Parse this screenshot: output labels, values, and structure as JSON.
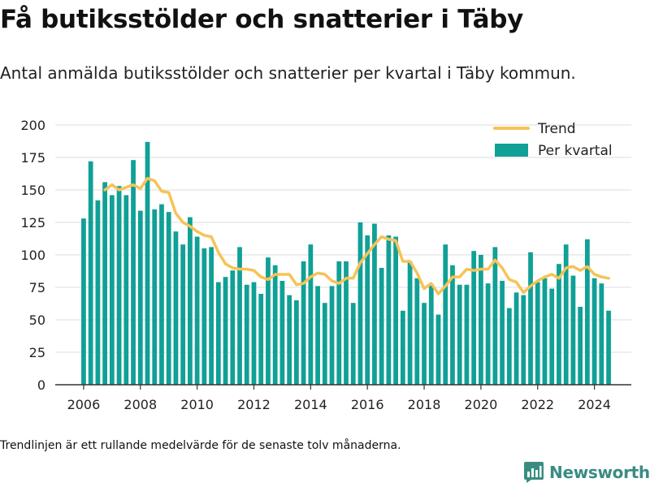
{
  "title": "Få butiksstölder och snatterier i Täby",
  "subtitle": "Antal anmälda butiksstölder och snatterier per kvartal i Täby kommun.",
  "footnote": "Trendlinjen är ett rullande medelvärde för de senaste tolv månaderna.",
  "brand": {
    "name": "Newsworthy",
    "icon": "newsworthy-logo-icon"
  },
  "colors": {
    "bar": "#10a096",
    "trend": "#f6c357",
    "grid": "#dddddd",
    "axis": "#333333"
  },
  "chart_data": {
    "type": "bar",
    "legend": {
      "position": "top-right",
      "trend_label": "Trend",
      "bars_label": "Per kvartal"
    },
    "ylim": [
      0,
      200
    ],
    "yticks": [
      0,
      25,
      50,
      75,
      100,
      125,
      150,
      175,
      200
    ],
    "xlim": [
      2005.0,
      2025.3
    ],
    "xticks": [
      2006,
      2008,
      2010,
      2012,
      2014,
      2016,
      2018,
      2020,
      2022,
      2024
    ],
    "grid": true,
    "x_start": 2006.0,
    "bars": [
      128,
      172,
      142,
      156,
      146,
      153,
      146,
      173,
      134,
      187,
      135,
      139,
      133,
      118,
      108,
      129,
      114,
      105,
      106,
      79,
      83,
      88,
      106,
      77,
      79,
      70,
      98,
      92,
      80,
      69,
      65,
      95,
      108,
      76,
      63,
      76,
      95,
      95,
      63,
      125,
      115,
      124,
      90,
      115,
      114,
      57,
      95,
      82,
      63,
      77,
      54,
      108,
      92,
      77,
      77,
      103,
      100,
      78,
      106,
      80,
      59,
      71,
      69,
      102,
      79,
      82,
      74,
      93,
      108,
      84,
      60,
      112,
      82,
      78,
      57
    ],
    "trend": [
      null,
      null,
      null,
      150,
      154,
      150,
      152,
      154,
      151,
      159,
      157,
      149,
      148,
      132,
      125,
      122,
      118,
      115,
      114,
      102,
      93,
      90,
      89,
      89,
      88,
      83,
      81,
      85,
      85,
      85,
      77,
      78,
      83,
      86,
      85,
      80,
      78,
      82,
      82,
      94,
      101,
      108,
      114,
      112,
      111,
      95,
      95,
      86,
      74,
      78,
      70,
      76,
      83,
      83,
      89,
      88,
      89,
      89,
      96,
      90,
      81,
      79,
      71,
      76,
      80,
      83,
      85,
      82,
      90,
      91,
      88,
      91,
      85,
      83,
      82
    ]
  }
}
